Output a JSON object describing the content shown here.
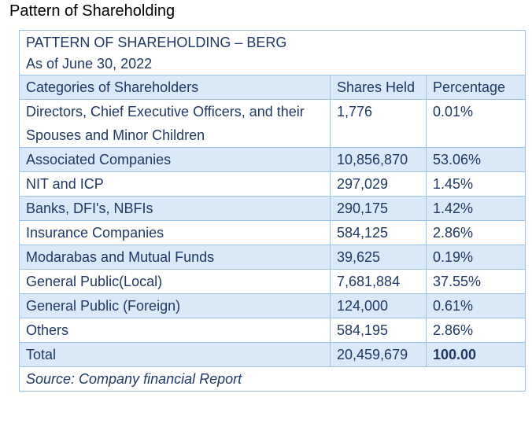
{
  "page": {
    "heading": "Pattern of Shareholding"
  },
  "table": {
    "title_line1": "PATTERN OF SHAREHOLDING – BERG",
    "title_line2": "As of June 30, 2022",
    "headers": {
      "category": "Categories of Shareholders",
      "shares": "Shares Held",
      "percentage": "Percentage"
    },
    "rows": [
      {
        "category": "Directors, Chief Executive Officers, and their Spouses and Minor Children",
        "shares": "1,776",
        "percentage": "0.01%"
      },
      {
        "category": "Associated Companies",
        "shares": "10,856,870",
        "percentage": "53.06%"
      },
      {
        "category": "NIT and ICP",
        "shares": "297,029",
        "percentage": "1.45%"
      },
      {
        "category": "Banks, DFI's, NBFIs",
        "shares": "290,175",
        "percentage": "1.42%"
      },
      {
        "category": "Insurance Companies",
        "shares": "584,125",
        "percentage": "2.86%"
      },
      {
        "category": "Modarabas and Mutual Funds",
        "shares": "39,625",
        "percentage": "0.19%"
      },
      {
        "category": "General Public(Local)",
        "shares": "7,681,884",
        "percentage": "37.55%"
      },
      {
        "category": "General Public (Foreign)",
        "shares": "124,000",
        "percentage": "0.61%"
      },
      {
        "category": "Others",
        "shares": "584,195",
        "percentage": "2.86%"
      }
    ],
    "total": {
      "label": "Total",
      "shares": "20,459,679",
      "percentage": "100.00"
    },
    "source": "Source: Company financial Report"
  },
  "colors": {
    "text": "#1f3864",
    "band": "#dae9f7",
    "border": "#9dc3e6"
  }
}
